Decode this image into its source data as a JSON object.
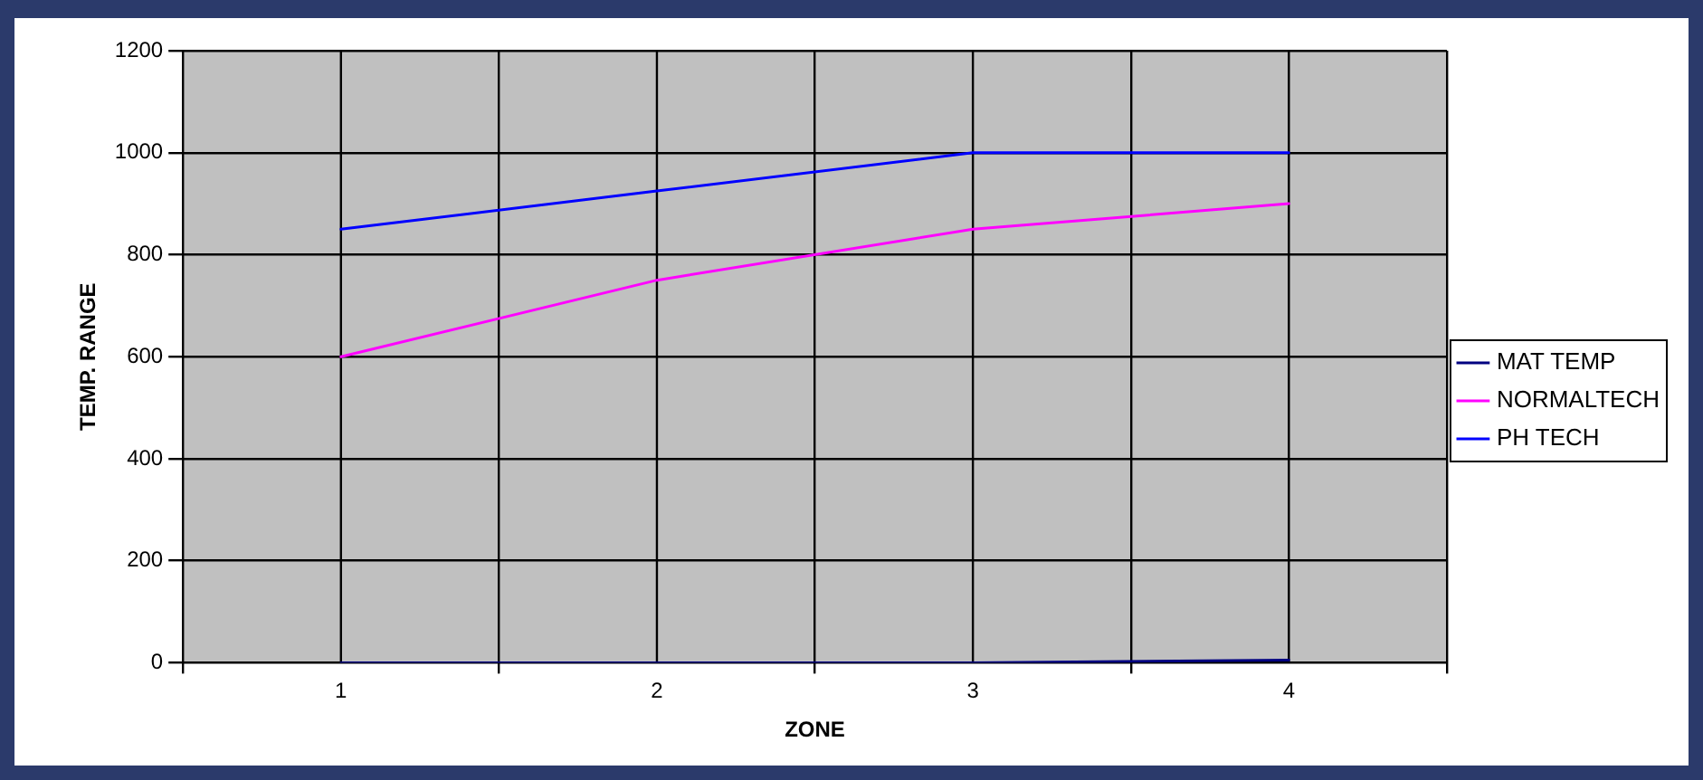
{
  "chart_data": {
    "type": "line",
    "xlabel": "ZONE",
    "ylabel": "TEMP. RANGE",
    "categories": [
      "1",
      "2",
      "3",
      "4"
    ],
    "series": [
      {
        "name": "MAT TEMP",
        "color": "#000080",
        "values": [
          0,
          0,
          0,
          5
        ]
      },
      {
        "name": "NORMALTECH",
        "color": "#ff00ff",
        "values": [
          600,
          750,
          850,
          900
        ]
      },
      {
        "name": "PH TECH",
        "color": "#0000ff",
        "values": [
          850,
          925,
          1000,
          1000
        ]
      }
    ],
    "ylim": [
      0,
      1200
    ],
    "yticks": [
      0,
      200,
      400,
      600,
      800,
      1000,
      1200
    ],
    "grid": true,
    "legend": "right",
    "marker": "none",
    "line_style": "solid"
  }
}
